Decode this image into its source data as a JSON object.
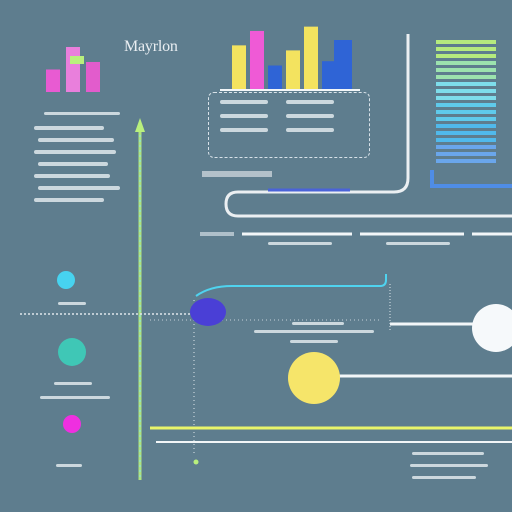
{
  "diagram": {
    "title": "Mayrlon",
    "bottom_right_badge": "",
    "colors": {
      "background": "#5e7d8e",
      "pink": "#ef5ad6",
      "yellow": "#f3e35f",
      "blue": "#2f64d6",
      "cyan": "#47d3f0",
      "green": "#b9f07d",
      "white": "#f2f6f8"
    },
    "charts": {
      "top_left_mini": {
        "type": "bar",
        "bars": [
          {
            "height_frac": 0.45,
            "color": "#ef5ad6"
          },
          {
            "height_frac": 0.9,
            "color": "#f07fe0"
          },
          {
            "height_frac": 0.6,
            "color": "#e95bd0"
          }
        ]
      },
      "center": {
        "type": "bar",
        "bars": [
          {
            "height_frac": 0.62,
            "color": "#f3e35f"
          },
          {
            "height_frac": 0.82,
            "color": "#ef5ad6"
          },
          {
            "height_frac": 0.34,
            "color": "#2f64d6"
          },
          {
            "height_frac": 0.55,
            "color": "#f3e35f"
          },
          {
            "height_frac": 0.88,
            "color": "#f3e35f"
          },
          {
            "height_frac": 0.4,
            "color": "#2f64d6"
          }
        ]
      },
      "right_stack": {
        "type": "stacked-lines",
        "stripes": 18
      }
    },
    "left_list_count": 7,
    "panel_rows": 3
  }
}
